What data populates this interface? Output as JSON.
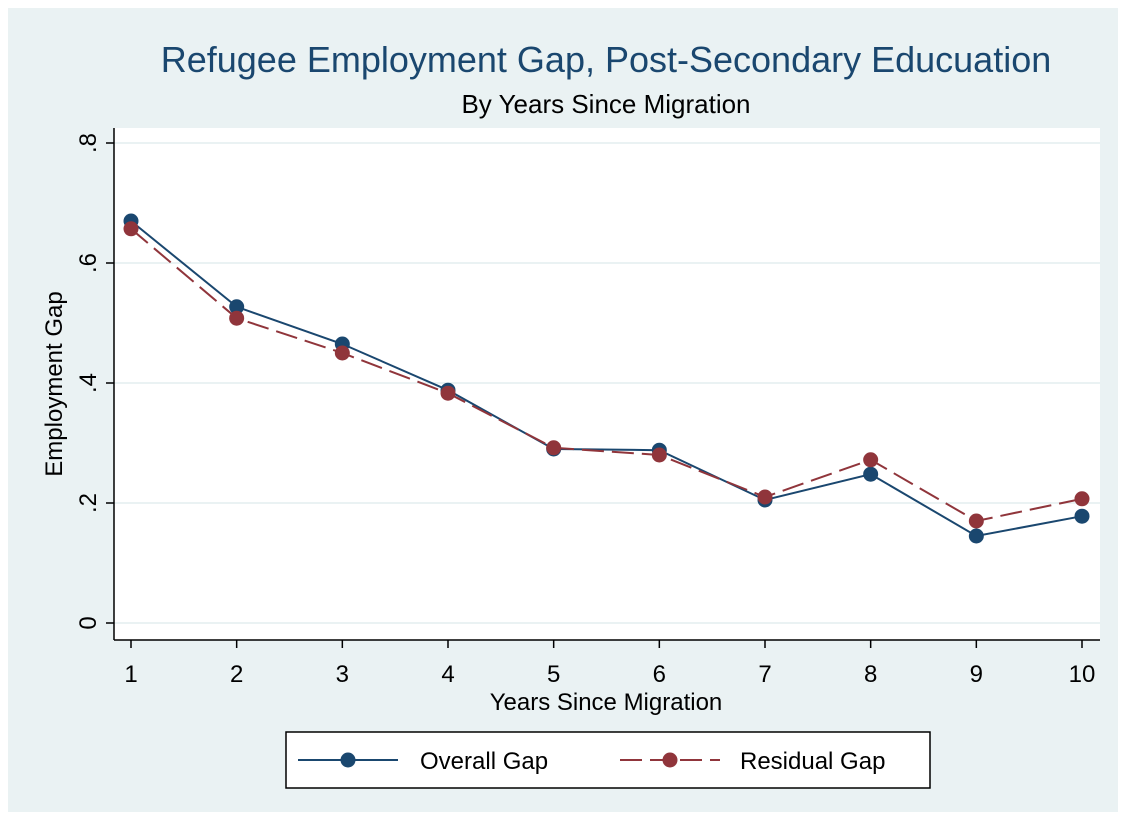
{
  "chart_data": {
    "type": "line",
    "title": "Refugee Employment Gap, Post-Secondary Educuation",
    "subtitle": "By Years Since Migration",
    "xlabel": "Years Since Migration",
    "ylabel": "Employment Gap",
    "x": [
      1,
      2,
      3,
      4,
      5,
      6,
      7,
      8,
      9,
      10
    ],
    "x_tick_labels": [
      "1",
      "2",
      "3",
      "4",
      "5",
      "6",
      "7",
      "8",
      "9",
      "10"
    ],
    "y_ticks": [
      0,
      0.2,
      0.4,
      0.6,
      0.8
    ],
    "y_tick_labels": [
      "0",
      ".2",
      ".4",
      ".6",
      ".8"
    ],
    "xlim": [
      1,
      10
    ],
    "ylim": [
      0,
      0.8
    ],
    "grid": true,
    "legend_position": "bottom",
    "series": [
      {
        "name": "Overall Gap",
        "color": "#1a476f",
        "line_style": "solid",
        "values": [
          0.67,
          0.527,
          0.465,
          0.388,
          0.29,
          0.288,
          0.205,
          0.248,
          0.145,
          0.178
        ]
      },
      {
        "name": "Residual Gap",
        "color": "#90353b",
        "line_style": "dashed",
        "values": [
          0.657,
          0.508,
          0.45,
          0.383,
          0.292,
          0.28,
          0.21,
          0.272,
          0.17,
          0.207
        ]
      }
    ]
  },
  "colors": {
    "title": "#1a476f",
    "outer_background": "#eaf2f3",
    "plot_background": "#ffffff",
    "gridline": "#eaf2f3",
    "axis": "#000000"
  }
}
